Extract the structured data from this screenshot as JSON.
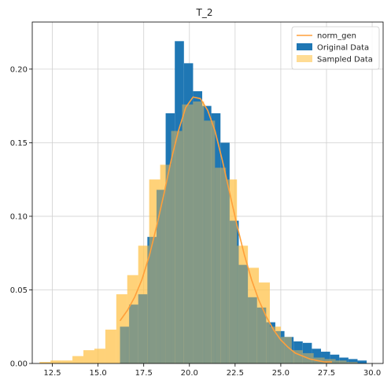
{
  "chart_data": {
    "type": "bar",
    "title": "T_2",
    "xlabel": "",
    "ylabel": "",
    "xlim": [
      11.4,
      30.6
    ],
    "ylim": [
      0,
      0.232
    ],
    "grid": true,
    "legend_position": "top-right",
    "x_ticks": [
      12.5,
      15.0,
      17.5,
      20.0,
      22.5,
      25.0,
      27.5,
      30.0
    ],
    "x_tick_labels": [
      "12.5",
      "15.0",
      "17.5",
      "20.0",
      "22.5",
      "25.0",
      "27.5",
      "30.0"
    ],
    "y_ticks": [
      0.0,
      0.05,
      0.1,
      0.15,
      0.2
    ],
    "y_tick_labels": [
      "0.00",
      "0.05",
      "0.10",
      "0.15",
      "0.20"
    ],
    "colors": {
      "original": "#1f77b4",
      "sampled": "#ffc44d",
      "norm_gen": "#ff9f3a"
    },
    "series": [
      {
        "name": "Original Data",
        "kind": "step-histogram",
        "bins": [
          {
            "x0": 16.2,
            "x1": 16.7,
            "y": 0.025
          },
          {
            "x0": 16.7,
            "x1": 17.2,
            "y": 0.04
          },
          {
            "x0": 17.2,
            "x1": 17.7,
            "y": 0.047
          },
          {
            "x0": 17.7,
            "x1": 18.2,
            "y": 0.086
          },
          {
            "x0": 18.2,
            "x1": 18.7,
            "y": 0.118
          },
          {
            "x0": 18.7,
            "x1": 19.2,
            "y": 0.17
          },
          {
            "x0": 19.2,
            "x1": 19.7,
            "y": 0.219
          },
          {
            "x0": 19.7,
            "x1": 20.2,
            "y": 0.204
          },
          {
            "x0": 20.2,
            "x1": 20.7,
            "y": 0.185
          },
          {
            "x0": 20.7,
            "x1": 21.2,
            "y": 0.175
          },
          {
            "x0": 21.2,
            "x1": 21.7,
            "y": 0.17
          },
          {
            "x0": 21.7,
            "x1": 22.2,
            "y": 0.15
          },
          {
            "x0": 22.2,
            "x1": 22.7,
            "y": 0.097
          },
          {
            "x0": 22.7,
            "x1": 23.2,
            "y": 0.067
          },
          {
            "x0": 23.2,
            "x1": 23.7,
            "y": 0.045
          },
          {
            "x0": 23.7,
            "x1": 24.2,
            "y": 0.038
          },
          {
            "x0": 24.2,
            "x1": 24.7,
            "y": 0.028
          },
          {
            "x0": 24.7,
            "x1": 25.2,
            "y": 0.022
          },
          {
            "x0": 25.2,
            "x1": 25.7,
            "y": 0.018
          },
          {
            "x0": 25.7,
            "x1": 26.2,
            "y": 0.015
          },
          {
            "x0": 26.2,
            "x1": 26.7,
            "y": 0.014
          },
          {
            "x0": 26.7,
            "x1": 27.2,
            "y": 0.01
          },
          {
            "x0": 27.2,
            "x1": 27.7,
            "y": 0.008
          },
          {
            "x0": 27.7,
            "x1": 28.2,
            "y": 0.006
          },
          {
            "x0": 28.2,
            "x1": 28.7,
            "y": 0.004
          },
          {
            "x0": 28.7,
            "x1": 29.2,
            "y": 0.003
          },
          {
            "x0": 29.2,
            "x1": 29.7,
            "y": 0.002
          }
        ]
      },
      {
        "name": "Sampled Data",
        "kind": "step-histogram",
        "bins": [
          {
            "x0": 11.8,
            "x1": 12.4,
            "y": 0.001
          },
          {
            "x0": 12.4,
            "x1": 13.0,
            "y": 0.002
          },
          {
            "x0": 13.0,
            "x1": 13.6,
            "y": 0.002
          },
          {
            "x0": 13.6,
            "x1": 14.2,
            "y": 0.005
          },
          {
            "x0": 14.2,
            "x1": 14.8,
            "y": 0.009
          },
          {
            "x0": 14.8,
            "x1": 15.4,
            "y": 0.01
          },
          {
            "x0": 15.4,
            "x1": 16.0,
            "y": 0.023
          },
          {
            "x0": 16.0,
            "x1": 16.6,
            "y": 0.047
          },
          {
            "x0": 16.6,
            "x1": 17.2,
            "y": 0.06
          },
          {
            "x0": 17.2,
            "x1": 17.8,
            "y": 0.08
          },
          {
            "x0": 17.8,
            "x1": 18.4,
            "y": 0.125
          },
          {
            "x0": 18.4,
            "x1": 19.0,
            "y": 0.135
          },
          {
            "x0": 19.0,
            "x1": 19.6,
            "y": 0.158
          },
          {
            "x0": 19.6,
            "x1": 20.2,
            "y": 0.176
          },
          {
            "x0": 20.2,
            "x1": 20.8,
            "y": 0.178
          },
          {
            "x0": 20.8,
            "x1": 21.4,
            "y": 0.165
          },
          {
            "x0": 21.4,
            "x1": 22.0,
            "y": 0.133
          },
          {
            "x0": 22.0,
            "x1": 22.6,
            "y": 0.125
          },
          {
            "x0": 22.6,
            "x1": 23.2,
            "y": 0.08
          },
          {
            "x0": 23.2,
            "x1": 23.8,
            "y": 0.065
          },
          {
            "x0": 23.8,
            "x1": 24.4,
            "y": 0.055
          },
          {
            "x0": 24.4,
            "x1": 25.0,
            "y": 0.025
          },
          {
            "x0": 25.0,
            "x1": 25.6,
            "y": 0.018
          },
          {
            "x0": 25.6,
            "x1": 26.2,
            "y": 0.009
          },
          {
            "x0": 26.2,
            "x1": 26.8,
            "y": 0.007
          },
          {
            "x0": 26.8,
            "x1": 27.4,
            "y": 0.004
          },
          {
            "x0": 27.4,
            "x1": 28.0,
            "y": 0.003
          },
          {
            "x0": 28.0,
            "x1": 28.6,
            "y": 0.002
          },
          {
            "x0": 28.6,
            "x1": 29.2,
            "y": 0.001
          }
        ]
      },
      {
        "name": "norm_gen",
        "kind": "line",
        "x": [
          16.2,
          16.6,
          17.0,
          17.4,
          17.8,
          18.2,
          18.6,
          19.0,
          19.4,
          19.8,
          20.2,
          20.6,
          21.0,
          21.4,
          21.8,
          22.2,
          22.6,
          23.0,
          23.4,
          23.8,
          24.2,
          24.6,
          25.0,
          25.4,
          25.8,
          26.2,
          26.6,
          27.0,
          27.4,
          27.8
        ],
        "y": [
          0.029,
          0.036,
          0.045,
          0.057,
          0.073,
          0.093,
          0.115,
          0.138,
          0.158,
          0.174,
          0.181,
          0.18,
          0.172,
          0.158,
          0.138,
          0.116,
          0.094,
          0.074,
          0.057,
          0.043,
          0.032,
          0.023,
          0.016,
          0.011,
          0.007,
          0.005,
          0.003,
          0.002,
          0.001,
          0.001
        ]
      }
    ],
    "legend": [
      {
        "label": "norm_gen",
        "marker": "line",
        "color_key": "norm_gen"
      },
      {
        "label": "Original Data",
        "marker": "patch",
        "color_key": "original"
      },
      {
        "label": "Sampled Data",
        "marker": "patch",
        "color_key": "sampled"
      }
    ]
  }
}
